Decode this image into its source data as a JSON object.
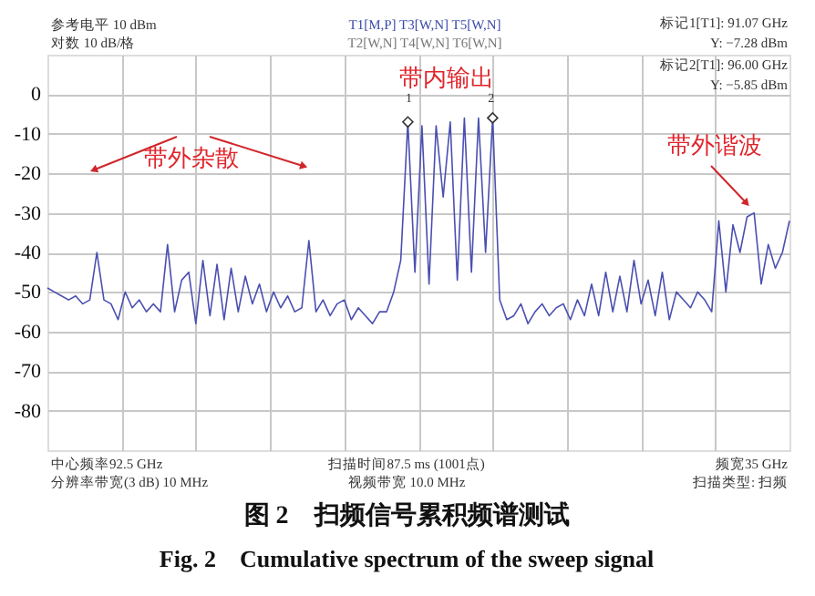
{
  "chart_data": {
    "type": "line",
    "title": "图 2　扫频信号累积频谱测试",
    "subtitle": "Fig. 2　Cumulative spectrum of the sweep signal",
    "categories": [
      null,
      null,
      null,
      null,
      null,
      null,
      null,
      null,
      null,
      null,
      null,
      null,
      null,
      null,
      null,
      null,
      null,
      null,
      null,
      null,
      null,
      null,
      null,
      null,
      null,
      null,
      null,
      null,
      null,
      null,
      null,
      null,
      null,
      null,
      null,
      null,
      null,
      null,
      null,
      null,
      null,
      null,
      null,
      null,
      null,
      null,
      null,
      null,
      null,
      null,
      null,
      null,
      null,
      null,
      null,
      null,
      null,
      null,
      null,
      null,
      null,
      null,
      null,
      null,
      null,
      null,
      null,
      null,
      null,
      null,
      null,
      null,
      null,
      null,
      null,
      null,
      null,
      null,
      null,
      null,
      null,
      null,
      null,
      null,
      null,
      null,
      null,
      null,
      null,
      null,
      null,
      null,
      null,
      null,
      null,
      null,
      null,
      null,
      null,
      null,
      null,
      null,
      null,
      null,
      null,
      null
    ],
    "ylim": [
      -90,
      10
    ],
    "yticks": [
      0,
      -10,
      -20,
      -30,
      -40,
      -50,
      -60,
      -70,
      -80
    ],
    "tick_labels": "y",
    "grid": true,
    "marker": "none",
    "line_style": "solid",
    "series": [
      {
        "color": "#4a4fb0",
        "values": [
          -49,
          -50,
          -51,
          -52,
          -51,
          -53,
          -52,
          -40,
          -52,
          -53,
          -57,
          -50,
          -54,
          -52,
          -55,
          -53,
          -55,
          -38,
          -55,
          -47,
          -45,
          -58,
          -42,
          -56,
          -43,
          -57,
          -44,
          -55,
          -46,
          -53,
          -48,
          -55,
          -50,
          -54,
          -51,
          -55,
          -54,
          -37,
          -55,
          -52,
          -56,
          -53,
          -52,
          -57,
          -54,
          -56,
          -58,
          -55,
          -55,
          -50,
          -42,
          -7,
          -45,
          -8,
          -48,
          -8,
          -26,
          -7,
          -47,
          -6,
          -45,
          -6,
          -40,
          -6,
          -52,
          -57,
          -56,
          -53,
          -58,
          -55,
          -53,
          -56,
          -54,
          -53,
          -57,
          -52,
          -56,
          -48,
          -56,
          -45,
          -55,
          -46,
          -55,
          -42,
          -53,
          -47,
          -56,
          -45,
          -57,
          -50,
          -52,
          -54,
          -50,
          -52,
          -55,
          -32,
          -50,
          -33,
          -40,
          -31,
          -30,
          -48,
          -38,
          -44,
          -40,
          -32
        ]
      },
      {
        "type": "scatter",
        "marker": "diamond",
        "color": "#ffffff",
        "values": [
          null,
          null,
          null,
          null,
          null,
          null,
          null,
          null,
          null,
          null,
          null,
          null,
          null,
          null,
          null,
          null,
          null,
          null,
          null,
          null,
          null,
          null,
          null,
          null,
          null,
          null,
          null,
          null,
          null,
          null,
          null,
          null,
          null,
          null,
          null,
          null,
          null,
          null,
          null,
          null,
          null,
          null,
          null,
          null,
          null,
          null,
          null,
          null,
          null,
          null,
          null,
          -7,
          null,
          null,
          null,
          null,
          null,
          null,
          null,
          null,
          null,
          null,
          null,
          -6,
          null,
          null,
          null,
          null,
          null,
          null,
          null,
          null,
          null,
          null,
          null,
          null,
          null,
          null,
          null,
          null,
          null,
          null,
          null,
          null,
          null,
          null,
          null,
          null,
          null,
          null,
          null,
          null,
          null,
          null,
          null,
          null,
          null,
          null,
          null,
          null,
          null,
          null,
          null,
          null,
          null,
          null
        ]
      }
    ],
    "annotations": [
      "参考电平 10 dBm",
      "对数 10 dB/格",
      "T1[M,P]  T3[W,N]  T5[W,N]",
      "T2[W,N]  T4[W,N]  T6[W,N]",
      "标记1[T1]: 91.07 GHz",
      "Y: −7.28 dBm",
      "标记2[T1]: 96.00 GHz",
      "Y: −5.85 dBm",
      "中心频率92.5 GHz",
      "分辨率带宽(3 dB) 10 MHz",
      "扫描时间87.5 ms (1001点)",
      "视频带宽 10.0 MHz",
      "频宽35 GHz",
      "扫描类型: 扫频",
      "带外杂散",
      "带内输出",
      "带外谐波",
      "1",
      "2"
    ]
  }
}
